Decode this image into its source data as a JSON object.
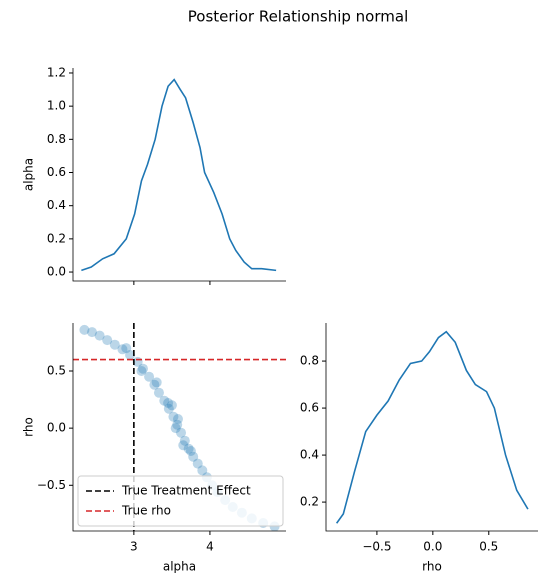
{
  "title": "Posterior Relationship normal",
  "chart_data": [
    {
      "type": "line",
      "ylabel": "alpha",
      "color": "#1f77b4",
      "x": [
        2.31,
        2.44,
        2.59,
        2.74,
        2.9,
        3.01,
        3.1,
        3.18,
        3.28,
        3.37,
        3.45,
        3.53,
        3.61,
        3.68,
        3.78,
        3.87,
        3.93,
        4.05,
        4.16,
        4.26,
        4.34,
        4.45,
        4.55,
        4.68,
        4.87
      ],
      "values": [
        0.01,
        0.03,
        0.08,
        0.11,
        0.2,
        0.35,
        0.55,
        0.65,
        0.8,
        1.0,
        1.12,
        1.16,
        1.1,
        1.05,
        0.9,
        0.75,
        0.6,
        0.48,
        0.35,
        0.2,
        0.13,
        0.06,
        0.02,
        0.02,
        0.01
      ],
      "xlim": [
        2.2,
        5.0
      ],
      "ylim": [
        -0.054,
        1.23
      ],
      "yticks": [
        {
          "value": 0,
          "label": "0.0"
        },
        0.2,
        0.4,
        0.6,
        0.8,
        {
          "value": 1,
          "label": "1.0"
        },
        1.2
      ]
    },
    {
      "type": "scatter",
      "xlabel": "alpha",
      "ylabel": "rho",
      "color": "#1f77b4",
      "x": [
        2.35,
        2.45,
        2.55,
        2.65,
        2.75,
        2.85,
        2.95,
        3.05,
        3.12,
        3.2,
        3.27,
        3.33,
        3.4,
        3.46,
        3.52,
        3.57,
        3.62,
        3.67,
        3.72,
        3.78,
        3.84,
        3.9,
        3.96,
        4.03,
        4.1,
        4.2,
        4.3,
        4.42,
        4.55,
        4.7,
        4.85,
        3.5,
        3.55,
        3.65,
        3.3,
        3.1,
        2.9,
        3.75,
        3.58,
        3.45
      ],
      "values": [
        0.86,
        0.84,
        0.81,
        0.77,
        0.73,
        0.69,
        0.64,
        0.58,
        0.52,
        0.45,
        0.38,
        0.31,
        0.24,
        0.17,
        0.1,
        0.03,
        -0.04,
        -0.11,
        -0.18,
        -0.25,
        -0.31,
        -0.37,
        -0.43,
        -0.5,
        -0.56,
        -0.63,
        -0.69,
        -0.74,
        -0.79,
        -0.83,
        -0.86,
        0.2,
        0,
        -0.15,
        0.4,
        0.5,
        0.7,
        -0.2,
        0.08,
        0.22
      ],
      "xlim": [
        2.2,
        5.0
      ],
      "ylim": [
        -0.9,
        0.92
      ],
      "xticks": [
        3,
        4
      ],
      "yticks": [
        {
          "value": -0.5,
          "label": "−0.5"
        },
        {
          "value": 0,
          "label": "0.0"
        },
        0.5
      ],
      "reference_lines": [
        {
          "orientation": "vertical",
          "value": 3,
          "color": "#000000",
          "name": "True Treatment Effect"
        },
        {
          "orientation": "horizontal",
          "value": 0.6,
          "color": "#d62728",
          "name": "True rho"
        }
      ],
      "legend": "lower left"
    },
    {
      "type": "line",
      "xlabel": "rho",
      "color": "#1f77b4",
      "x": [
        -0.86,
        -0.8,
        -0.7,
        -0.6,
        -0.5,
        -0.4,
        -0.3,
        -0.2,
        -0.1,
        -0.03,
        0.05,
        0.12,
        0.2,
        0.3,
        0.38,
        0.48,
        0.55,
        0.65,
        0.75,
        0.85
      ],
      "values": [
        0.11,
        0.15,
        0.33,
        0.5,
        0.57,
        0.63,
        0.72,
        0.79,
        0.8,
        0.84,
        0.9,
        0.925,
        0.88,
        0.76,
        0.7,
        0.67,
        0.6,
        0.4,
        0.25,
        0.17
      ],
      "xlim": [
        -0.955,
        0.94
      ],
      "ylim": [
        0.077,
        0.962
      ],
      "xticks": [
        {
          "value": -0.5,
          "label": "−0.5"
        },
        {
          "value": 0,
          "label": "0.0"
        },
        0.5
      ],
      "yticks": [
        0.2,
        0.4,
        0.6,
        0.8
      ]
    }
  ]
}
